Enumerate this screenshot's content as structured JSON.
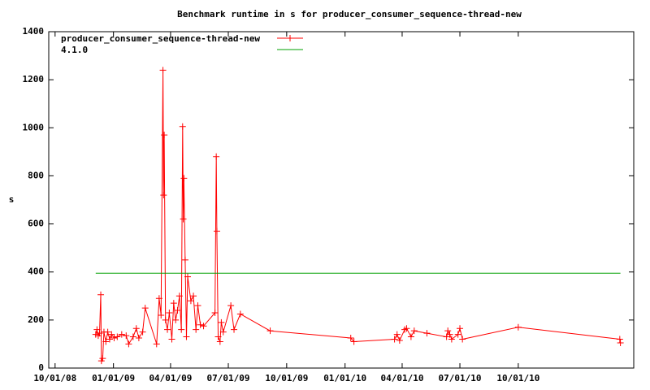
{
  "chart_data": {
    "type": "line",
    "title": "Benchmark runtime in s for producer_consumer_sequence-thread-new",
    "y_label": "s",
    "xlim": [
      "2008-09-21",
      "2011-04-01"
    ],
    "xticks": [
      {
        "value": "2008-10-01",
        "label": "10/01/08"
      },
      {
        "value": "2009-01-01",
        "label": "01/01/09"
      },
      {
        "value": "2009-04-01",
        "label": "04/01/09"
      },
      {
        "value": "2009-07-01",
        "label": "07/01/09"
      },
      {
        "value": "2009-10-01",
        "label": "10/01/09"
      },
      {
        "value": "2010-01-01",
        "label": "01/01/10"
      },
      {
        "value": "2010-04-01",
        "label": "04/01/10"
      },
      {
        "value": "2010-07-01",
        "label": "07/01/10"
      },
      {
        "value": "2010-10-01",
        "label": "10/01/10"
      }
    ],
    "ylim": [
      0,
      1400
    ],
    "yticks": [
      0,
      200,
      400,
      600,
      800,
      1000,
      1200,
      1400
    ],
    "legend": "top-left",
    "series": [
      {
        "name": "producer_consumer_sequence-thread-new",
        "color": "#ff0000",
        "markers": true,
        "x": [
          "2008-12-04",
          "2008-12-06",
          "2008-12-08",
          "2008-12-10",
          "2008-12-12",
          "2008-12-13",
          "2008-12-15",
          "2008-12-17",
          "2008-12-20",
          "2008-12-23",
          "2008-12-26",
          "2008-12-29",
          "2009-01-02",
          "2009-01-07",
          "2009-01-14",
          "2009-01-21",
          "2009-01-25",
          "2009-02-01",
          "2009-02-06",
          "2009-02-10",
          "2009-02-16",
          "2009-02-20",
          "2009-03-10",
          "2009-03-14",
          "2009-03-17",
          "2009-03-20",
          "2009-03-21",
          "2009-03-22",
          "2009-03-24",
          "2009-03-27",
          "2009-03-30",
          "2009-04-03",
          "2009-04-06",
          "2009-04-09",
          "2009-04-12",
          "2009-04-15",
          "2009-04-18",
          "2009-04-20",
          "2009-04-21",
          "2009-04-22",
          "2009-04-24",
          "2009-04-26",
          "2009-04-28",
          "2009-05-03",
          "2009-05-07",
          "2009-05-11",
          "2009-05-14",
          "2009-05-18",
          "2009-05-23",
          "2009-06-10",
          "2009-06-12",
          "2009-06-13",
          "2009-06-15",
          "2009-06-18",
          "2009-06-20",
          "2009-06-23",
          "2009-07-05",
          "2009-07-10",
          "2009-07-20",
          "2009-09-05",
          "2010-01-10",
          "2010-01-15",
          "2010-03-20",
          "2010-03-24",
          "2010-03-28",
          "2010-04-05",
          "2010-04-08",
          "2010-04-15",
          "2010-04-20",
          "2010-05-10",
          "2010-06-10",
          "2010-06-12",
          "2010-06-15",
          "2010-06-18",
          "2010-06-28",
          "2010-07-01",
          "2010-07-05",
          "2010-10-01",
          "2011-03-10",
          "2011-03-11"
        ],
        "values": [
          140,
          160,
          135,
          145,
          305,
          30,
          40,
          150,
          110,
          150,
          120,
          140,
          125,
          130,
          140,
          135,
          100,
          130,
          165,
          125,
          150,
          250,
          100,
          290,
          220,
          1240,
          720,
          970,
          200,
          160,
          230,
          120,
          270,
          200,
          240,
          300,
          160,
          1005,
          620,
          790,
          450,
          130,
          380,
          280,
          300,
          160,
          260,
          180,
          175,
          230,
          880,
          570,
          130,
          110,
          190,
          150,
          260,
          160,
          225,
          155,
          125,
          110,
          120,
          140,
          115,
          160,
          165,
          130,
          155,
          145,
          130,
          155,
          140,
          120,
          140,
          165,
          120,
          170,
          120,
          105
        ]
      },
      {
        "name": "4.1.0",
        "color": "#00a000",
        "markers": false,
        "x": [
          "2008-12-04",
          "2011-03-11"
        ],
        "values": [
          395,
          395
        ]
      }
    ]
  }
}
